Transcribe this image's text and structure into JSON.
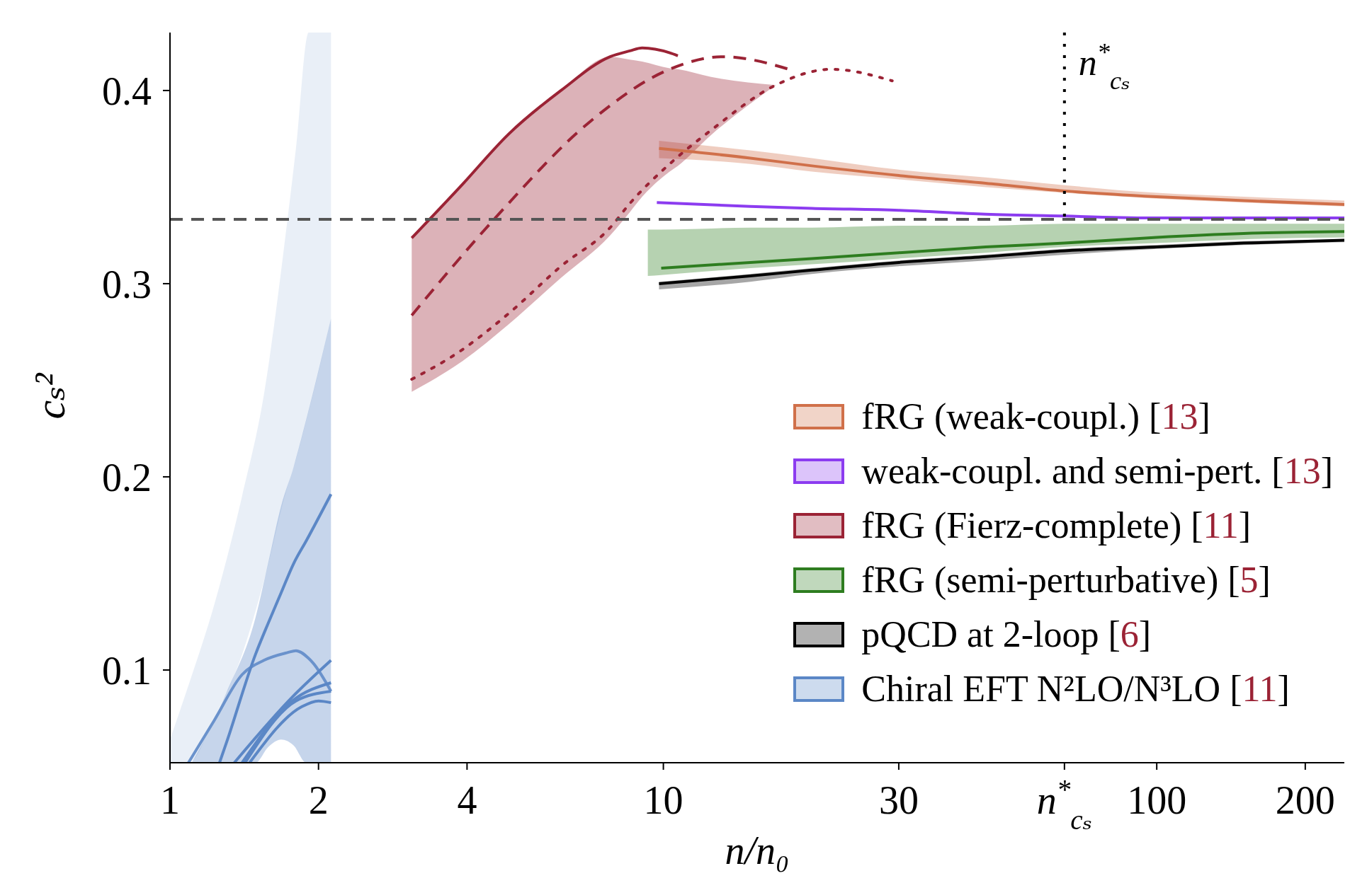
{
  "chart_data": {
    "type": "line",
    "xlabel": "n/n₀",
    "ylabel": "cₛ²",
    "log": "x",
    "xlim": [
      1,
      240
    ],
    "ylim": [
      0.052,
      0.43
    ],
    "xticks": [
      1,
      2,
      4,
      10,
      30,
      {
        "value": 65,
        "label": "n$^{*}$$_{cₛ}$"
      },
      100,
      200
    ],
    "yticks": [
      0.1,
      0.2,
      0.3,
      0.4
    ],
    "legend": "bottom right",
    "marker": "none",
    "ref_lines": [
      {
        "axis": "y",
        "value": 0.3333,
        "color": "#555555",
        "line_style": "dashed"
      },
      {
        "axis": "x",
        "value": 65,
        "label": "n$^{*}$$_{cₛ}$",
        "color": "#000000",
        "line_style": "dotted"
      }
    ],
    "series": [
      {
        "name": "fRG (weak-coupl.) [13]",
        "color": "#d0704a",
        "x": [
          9.8,
          15,
          20,
          30,
          45,
          65,
          100,
          150,
          240
        ],
        "values": [
          0.37,
          0.365,
          0.361,
          0.356,
          0.352,
          0.348,
          0.345,
          0.343,
          0.341
        ],
        "lower": [
          0.365,
          0.362,
          0.358,
          0.354,
          0.35,
          0.347,
          0.344,
          0.342,
          0.34
        ],
        "upper": [
          0.374,
          0.369,
          0.365,
          0.359,
          0.355,
          0.351,
          0.347,
          0.345,
          0.343
        ]
      },
      {
        "name": "weak-coupl. and semi-pert. [13]",
        "color": "#8c3cf0",
        "x": [
          9.7,
          15,
          20,
          30,
          45,
          65,
          100,
          150,
          240
        ],
        "values": [
          0.342,
          0.34,
          0.339,
          0.338,
          0.336,
          0.335,
          0.334,
          0.334,
          0.334
        ]
      },
      {
        "name": "fRG (Fierz-complete) [11]",
        "color": "#9b2335",
        "line_style": "solid",
        "x": [
          3.09,
          3.87,
          4.86,
          6.2,
          7.8,
          8.55,
          9.06,
          10.3,
          10.7,
          12.5,
          16.9
        ],
        "values": [
          0.3236,
          0.35,
          0.3775,
          0.4,
          0.4175,
          0.4205,
          0.422,
          0.4195,
          0.418,
          null,
          null
        ],
        "lower": [
          0.244,
          0.259,
          0.279,
          0.303,
          0.325,
          0.337,
          0.345,
          0.358,
          0.361,
          0.377,
          0.4028
        ],
        "upper": [
          0.3236,
          0.35,
          0.3775,
          0.4,
          0.4175,
          0.416,
          0.415,
          0.4115,
          0.411,
          0.407,
          0.4028
        ]
      },
      {
        "color": "#9b2335",
        "line_style": "dashed",
        "x": [
          3.09,
          4.6,
          7.08,
          10.3,
          13.2,
          18.5
        ],
        "values": [
          0.2836,
          0.335,
          0.3836,
          0.411,
          0.4175,
          0.41
        ]
      },
      {
        "color": "#9b2335",
        "line_style": "dotted",
        "x": [
          3.09,
          3.87,
          4.86,
          6.2,
          7.8,
          8.55,
          10.3,
          12.5,
          16.9,
          21.9,
          29.1
        ],
        "values": [
          0.2505,
          0.265,
          0.2846,
          0.309,
          0.329,
          0.3415,
          0.362,
          0.3795,
          0.4028,
          0.411,
          0.405
        ]
      },
      {
        "name": "fRG (semi-perturbative) [5]",
        "color": "#2e7d20",
        "x": [
          9.3,
          9.9,
          15,
          20,
          30,
          45,
          65,
          100,
          150,
          240
        ],
        "values": [
          null,
          0.308,
          0.311,
          0.313,
          0.316,
          0.319,
          0.321,
          0.324,
          0.326,
          0.327
        ],
        "lower": [
          0.304,
          0.3045,
          0.308,
          0.31,
          0.313,
          0.316,
          0.319,
          0.321,
          0.323,
          0.324
        ],
        "upper": [
          0.328,
          0.328,
          0.329,
          0.329,
          0.33,
          0.33,
          0.331,
          0.331,
          0.331,
          0.331
        ]
      },
      {
        "name": "pQCD at 2-loop [6]",
        "color": "#000000",
        "x": [
          9.8,
          15,
          20,
          30,
          45,
          65,
          100,
          150,
          240
        ],
        "values": [
          0.3,
          0.304,
          0.307,
          0.311,
          0.314,
          0.317,
          0.319,
          0.321,
          0.3225
        ],
        "lower": [
          0.297,
          0.301,
          0.305,
          0.309,
          0.312,
          0.315,
          0.318,
          0.32,
          0.3215
        ],
        "upper": [
          0.301,
          0.305,
          0.308,
          0.312,
          0.315,
          0.318,
          0.32,
          0.322,
          0.323
        ]
      },
      {
        "color": "#6a92cc",
        "x": [
          1,
          1.09,
          1.23,
          1.4,
          1.55,
          1.73,
          1.8,
          1.91,
          1.95,
          2.12
        ],
        "values": [
          null,
          0.052,
          0.074,
          0.0976,
          0.105,
          0.109,
          0.11,
          0.106,
          0.1036,
          0.089
        ],
        "lower": [
          0.052,
          0.052,
          0.075,
          0.108,
          0.146,
          0.195,
          0.209,
          0.234,
          0.243,
          0.282
        ],
        "upper": [
          0.064,
          0.092,
          0.134,
          0.19,
          0.2425,
          0.333,
          0.37,
          0.43,
          0.43,
          0.43
        ]
      },
      {
        "color": "#5b87c6",
        "x": [
          1.35,
          1.77,
          2.12
        ],
        "values": [
          0.052,
          0.086,
          0.105
        ]
      },
      {
        "color": "#5b87c6",
        "x": [
          1.4,
          1.77,
          2.12
        ],
        "values": [
          0.052,
          0.084,
          0.0934
        ]
      },
      {
        "color": "#5b87c6",
        "x": [
          1.42,
          1.8,
          2.12
        ],
        "values": [
          0.052,
          0.084,
          0.089
        ]
      },
      {
        "color": "#5b87c6",
        "x": [
          1.45,
          1.85,
          2.0,
          2.12
        ],
        "values": [
          0.052,
          0.081,
          0.084,
          0.0831
        ]
      },
      {
        "name": "Chiral EFT N²LO/N³LO [11]",
        "color": "#5b87c6",
        "x": [
          1.107,
          1.26,
          1.3,
          1.49,
          1.58,
          1.68,
          1.78,
          1.89,
          2.12
        ],
        "values": [
          null,
          0.052,
          0.062,
          0.108,
          0.124,
          0.14,
          0.155,
          0.167,
          0.191
        ],
        "lower": [
          0.052,
          0.052,
          0.052,
          0.052,
          0.06,
          0.064,
          0.061,
          0.052,
          0.052
        ],
        "upper": [
          0.052,
          0.08,
          0.088,
          0.127,
          0.155,
          0.185,
          0.205,
          0.23,
          0.282
        ]
      }
    ]
  }
}
